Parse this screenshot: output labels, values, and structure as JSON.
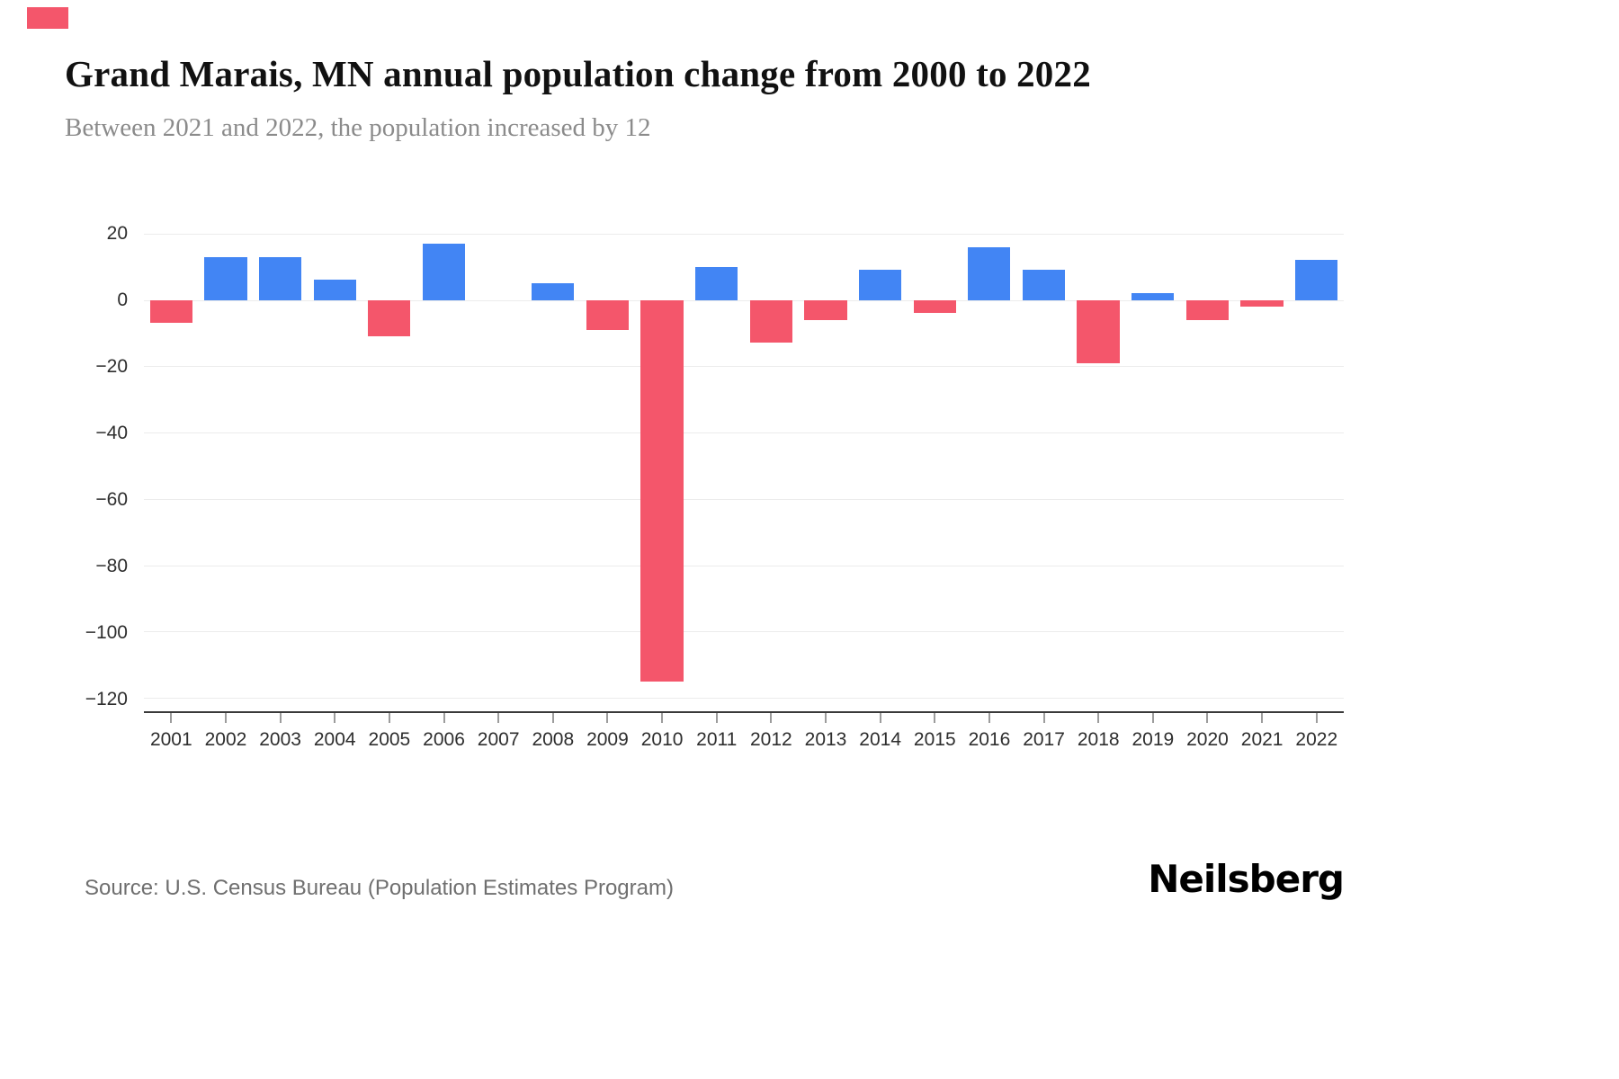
{
  "chart": {
    "title": "Grand Marais, MN annual population change from 2000 to 2022",
    "subtitle": "Between 2021 and 2022, the population increased by 12"
  },
  "footer": {
    "source": "Source: U.S. Census Bureau (Population Estimates Program)",
    "logo": "Neilsberg"
  },
  "chart_data": {
    "type": "bar",
    "title": "Grand Marais, MN annual population change from 2000 to 2022",
    "subtitle": "Between 2021 and 2022, the population increased by 12",
    "xlabel": "",
    "ylabel": "",
    "categories": [
      "2001",
      "2002",
      "2003",
      "2004",
      "2005",
      "2006",
      "2007",
      "2008",
      "2009",
      "2010",
      "2011",
      "2012",
      "2013",
      "2014",
      "2015",
      "2016",
      "2017",
      "2018",
      "2019",
      "2020",
      "2021",
      "2022"
    ],
    "values": [
      -7,
      13,
      13,
      6,
      -11,
      17,
      0,
      5,
      -9,
      -115,
      10,
      -13,
      -6,
      9,
      -4,
      16,
      9,
      -19,
      2,
      -6,
      -2,
      12
    ],
    "yticks": [
      20,
      0,
      -20,
      -40,
      -60,
      -80,
      -100,
      -120
    ],
    "ylim": [
      -124,
      24
    ],
    "grid": true,
    "legend": false,
    "colors": {
      "positive": "#4285f4",
      "negative": "#f4566b"
    }
  }
}
